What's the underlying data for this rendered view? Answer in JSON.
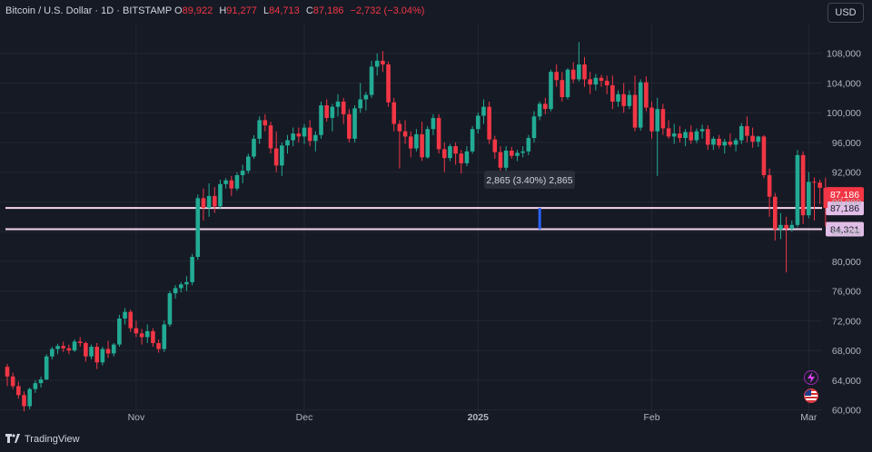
{
  "header": {
    "symbol": "Bitcoin / U.S. Dollar · 1D · BITSTAMP",
    "o_label": "O",
    "o_value": "89,922",
    "h_label": "H",
    "h_value": "91,277",
    "l_label": "L",
    "l_value": "84,713",
    "c_label": "C",
    "c_value": "87,186",
    "change": "−2,732 (−3.04%)"
  },
  "currency_button": "USD",
  "branding": {
    "name": "TradingView"
  },
  "colors": {
    "background": "#161a25",
    "up": "#22ab94",
    "down": "#f23645",
    "grid": "#232733",
    "hline": "#f7d7f0",
    "measure": "#2962ff"
  },
  "icons": [
    "tradingview-logo-icon",
    "lightning-icon",
    "us-flag-icon"
  ],
  "chart_data": {
    "type": "candlestick",
    "ylim": [
      58000,
      112000
    ],
    "yticks": [
      60000,
      64000,
      68000,
      72000,
      76000,
      80000,
      84000,
      88000,
      92000,
      96000,
      100000,
      104000,
      108000
    ],
    "ytick_labels": [
      "60,000",
      "64,000",
      "68,000",
      "72,000",
      "76,000",
      "80,000",
      "84,000",
      "88,000",
      "92,000",
      "96,000",
      "100,000",
      "104,000",
      "108,000"
    ],
    "xticks": [
      {
        "label": "Nov",
        "index": 23
      },
      {
        "label": "Dec",
        "index": 53
      },
      {
        "label": "2025",
        "index": 84
      },
      {
        "label": "Feb",
        "index": 115
      },
      {
        "label": "Mar",
        "index": 143
      }
    ],
    "horizontal_lines": [
      {
        "value": 87186,
        "label": "87,186"
      },
      {
        "value": 84321,
        "label": "84,321"
      }
    ],
    "price_labels": [
      {
        "value": 87186,
        "label": "87,186"
      }
    ],
    "measurement": {
      "label": "2,865 (3.40%) 2,865",
      "index": 95,
      "from": 84321,
      "to": 87186
    },
    "candles": [
      [
        65800,
        66200,
        63200,
        64500
      ],
      [
        64500,
        65000,
        62800,
        63200
      ],
      [
        63200,
        63800,
        61500,
        62000
      ],
      [
        62000,
        62500,
        59800,
        60500
      ],
      [
        60500,
        63000,
        60100,
        62800
      ],
      [
        62800,
        64000,
        62300,
        63600
      ],
      [
        63600,
        64500,
        63000,
        64100
      ],
      [
        64100,
        67500,
        64000,
        67200
      ],
      [
        67200,
        68500,
        66800,
        68200
      ],
      [
        68200,
        68900,
        67500,
        68600
      ],
      [
        68600,
        69200,
        67800,
        68300
      ],
      [
        68300,
        68800,
        67500,
        68000
      ],
      [
        68000,
        69500,
        67800,
        69200
      ],
      [
        69200,
        69800,
        68500,
        69000
      ],
      [
        69000,
        69200,
        66500,
        67200
      ],
      [
        67200,
        68800,
        66800,
        68500
      ],
      [
        68500,
        69000,
        65500,
        66400
      ],
      [
        66400,
        68500,
        66000,
        68200
      ],
      [
        68200,
        69300,
        67000,
        67600
      ],
      [
        67600,
        69000,
        67200,
        68800
      ],
      [
        68800,
        72800,
        68500,
        72300
      ],
      [
        72300,
        73700,
        71500,
        73200
      ],
      [
        73200,
        73500,
        70500,
        71000
      ],
      [
        71000,
        72000,
        69800,
        70300
      ],
      [
        70300,
        70900,
        68800,
        69800
      ],
      [
        69800,
        71500,
        69000,
        70600
      ],
      [
        70600,
        71000,
        68500,
        69000
      ],
      [
        69000,
        69500,
        67700,
        68200
      ],
      [
        68200,
        72000,
        67800,
        71500
      ],
      [
        71500,
        76000,
        71200,
        75700
      ],
      [
        75700,
        76800,
        75000,
        76400
      ],
      [
        76400,
        77200,
        75800,
        76900
      ],
      [
        76900,
        78000,
        76000,
        77200
      ],
      [
        77200,
        81000,
        76800,
        80600
      ],
      [
        80600,
        89000,
        80200,
        88500
      ],
      [
        88500,
        89800,
        85500,
        87200
      ],
      [
        87200,
        90500,
        86000,
        88800
      ],
      [
        88800,
        90000,
        86500,
        87400
      ],
      [
        87400,
        91000,
        87000,
        90400
      ],
      [
        90400,
        91200,
        89800,
        90900
      ],
      [
        90900,
        91500,
        88800,
        89800
      ],
      [
        89800,
        92000,
        89500,
        91600
      ],
      [
        91600,
        93000,
        90500,
        92200
      ],
      [
        92200,
        94500,
        91800,
        94100
      ],
      [
        94100,
        97000,
        93800,
        96500
      ],
      [
        96500,
        99500,
        95800,
        99000
      ],
      [
        99000,
        99800,
        97500,
        98300
      ],
      [
        98300,
        98800,
        94500,
        95200
      ],
      [
        95200,
        97500,
        92000,
        92900
      ],
      [
        92900,
        96000,
        91500,
        95600
      ],
      [
        95600,
        97000,
        94500,
        96300
      ],
      [
        96300,
        98000,
        95500,
        97200
      ],
      [
        97200,
        98000,
        96000,
        96800
      ],
      [
        96800,
        98500,
        95800,
        98000
      ],
      [
        98000,
        99000,
        95500,
        96200
      ],
      [
        96200,
        97500,
        94800,
        97000
      ],
      [
        97000,
        101500,
        96500,
        101000
      ],
      [
        101000,
        101800,
        98800,
        99300
      ],
      [
        99300,
        101200,
        97500,
        100800
      ],
      [
        100800,
        102500,
        99500,
        101500
      ],
      [
        101500,
        102000,
        98500,
        99800
      ],
      [
        99800,
        100500,
        96000,
        96500
      ],
      [
        96500,
        101000,
        96000,
        100600
      ],
      [
        100600,
        104000,
        100000,
        101800
      ],
      [
        101800,
        102800,
        100300,
        102400
      ],
      [
        102400,
        107000,
        102000,
        106200
      ],
      [
        106200,
        108000,
        105000,
        107000
      ],
      [
        107000,
        108300,
        105500,
        106500
      ],
      [
        106500,
        106900,
        100800,
        101400
      ],
      [
        101400,
        102000,
        97500,
        98500
      ],
      [
        98500,
        99000,
        92500,
        97500
      ],
      [
        97500,
        99000,
        95800,
        96800
      ],
      [
        96800,
        97500,
        94000,
        95200
      ],
      [
        95200,
        97800,
        94800,
        97100
      ],
      [
        97100,
        98800,
        93500,
        94000
      ],
      [
        94000,
        98200,
        93800,
        97800
      ],
      [
        97800,
        99800,
        97000,
        99300
      ],
      [
        99300,
        99800,
        94500,
        95100
      ],
      [
        95100,
        96000,
        92000,
        93900
      ],
      [
        93900,
        95800,
        93500,
        95500
      ],
      [
        95500,
        96000,
        93000,
        94500
      ],
      [
        94500,
        95000,
        91800,
        93200
      ],
      [
        93200,
        95500,
        92800,
        94800
      ],
      [
        94800,
        98200,
        94500,
        97800
      ],
      [
        97800,
        100000,
        97200,
        99600
      ],
      [
        99600,
        101800,
        98500,
        100800
      ],
      [
        100800,
        101500,
        95800,
        96400
      ],
      [
        96400,
        96900,
        93800,
        94700
      ],
      [
        94700,
        95500,
        91500,
        92600
      ],
      [
        92600,
        95500,
        92000,
        94900
      ],
      [
        94900,
        95400,
        93800,
        94200
      ],
      [
        94200,
        95000,
        93500,
        94600
      ],
      [
        94600,
        95500,
        94000,
        94800
      ],
      [
        94800,
        97000,
        94300,
        96600
      ],
      [
        96600,
        100200,
        96000,
        99500
      ],
      [
        99500,
        101500,
        99000,
        101200
      ],
      [
        101200,
        102000,
        99800,
        100500
      ],
      [
        100500,
        105800,
        100200,
        105500
      ],
      [
        105500,
        106500,
        103500,
        104400
      ],
      [
        104400,
        105500,
        101500,
        102100
      ],
      [
        102100,
        106000,
        101800,
        105800
      ],
      [
        105800,
        106800,
        104000,
        104500
      ],
      [
        104500,
        109500,
        104200,
        106500
      ],
      [
        106500,
        107500,
        103500,
        104500
      ],
      [
        104500,
        105500,
        102500,
        103800
      ],
      [
        103800,
        105200,
        103000,
        104700
      ],
      [
        104700,
        105100,
        103500,
        104300
      ],
      [
        104300,
        105000,
        102500,
        103700
      ],
      [
        103700,
        105000,
        100500,
        101500
      ],
      [
        101500,
        103000,
        100800,
        102500
      ],
      [
        102500,
        104000,
        100000,
        100900
      ],
      [
        100900,
        103000,
        100500,
        102400
      ],
      [
        102400,
        105000,
        97500,
        98000
      ],
      [
        98000,
        104500,
        97600,
        104100
      ],
      [
        104100,
        104900,
        100200,
        100700
      ],
      [
        100700,
        101500,
        96500,
        97500
      ],
      [
        97500,
        102000,
        91500,
        100500
      ],
      [
        100500,
        101200,
        97000,
        97900
      ],
      [
        97900,
        99000,
        96500,
        96800
      ],
      [
        96800,
        98500,
        95800,
        97200
      ],
      [
        97200,
        98200,
        96000,
        96600
      ],
      [
        96600,
        97800,
        95500,
        97400
      ],
      [
        97400,
        98300,
        95800,
        96300
      ],
      [
        96300,
        97900,
        95900,
        97500
      ],
      [
        97500,
        98400,
        96500,
        97800
      ],
      [
        97800,
        98300,
        95000,
        95700
      ],
      [
        95700,
        96800,
        95000,
        96500
      ],
      [
        96500,
        97000,
        95200,
        95600
      ],
      [
        95600,
        96500,
        94500,
        96100
      ],
      [
        96100,
        97200,
        95400,
        95700
      ],
      [
        95700,
        96600,
        94800,
        96300
      ],
      [
        96300,
        98600,
        95800,
        98200
      ],
      [
        98200,
        99500,
        96000,
        96900
      ],
      [
        96900,
        98000,
        95300,
        96100
      ],
      [
        96100,
        96900,
        95400,
        96800
      ],
      [
        96800,
        97000,
        91200,
        91600
      ],
      [
        91600,
        92500,
        86000,
        88700
      ],
      [
        88700,
        89200,
        82800,
        84300
      ],
      [
        84300,
        86500,
        83000,
        84900
      ],
      [
        84900,
        86000,
        78500,
        84400
      ],
      [
        84400,
        85500,
        84000,
        84900
      ],
      [
        84900,
        95000,
        84600,
        94300
      ],
      [
        94300,
        94800,
        85000,
        86200
      ],
      [
        86200,
        92000,
        85800,
        90700
      ],
      [
        90700,
        91300,
        85500,
        90600
      ],
      [
        90600,
        91000,
        87700,
        89900
      ],
      [
        89900,
        91277,
        84713,
        87186
      ]
    ]
  }
}
